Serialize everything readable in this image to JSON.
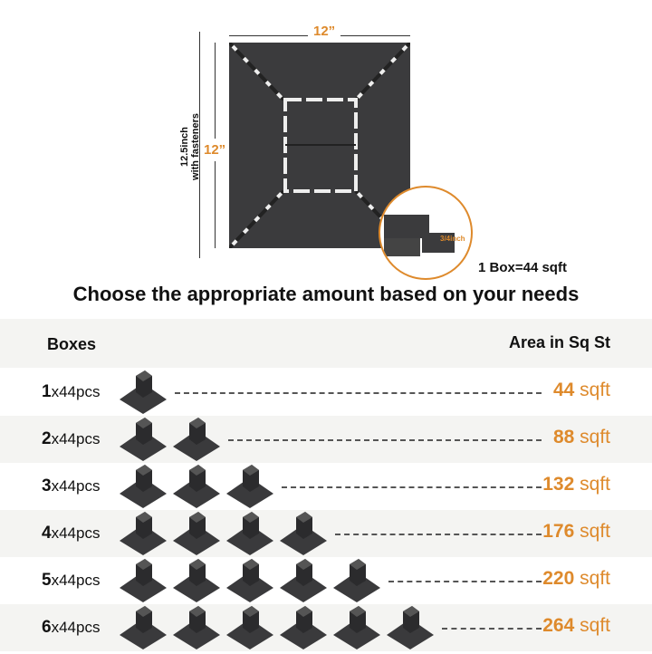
{
  "diagram": {
    "width_label": "12”",
    "height_label": "12”",
    "overall_label_line1": "12.5inch",
    "overall_label_line2": "with fasteners",
    "thickness_label": "3/4inch",
    "box_coverage": "1 Box=44 sqft"
  },
  "heading": "Choose the appropriate amount based on your needs",
  "table": {
    "col_boxes": "Boxes",
    "col_area": "Area in Sq St",
    "rows": [
      {
        "count": "1",
        "unit": "x44pcs",
        "area": "44",
        "area_unit": "sqft"
      },
      {
        "count": "2",
        "unit": "x44pcs",
        "area": "88",
        "area_unit": "sqft"
      },
      {
        "count": "3",
        "unit": "x44pcs",
        "area": "132",
        "area_unit": "sqft"
      },
      {
        "count": "4",
        "unit": "x44pcs",
        "area": "176",
        "area_unit": "sqft"
      },
      {
        "count": "5",
        "unit": "x44pcs",
        "area": "220",
        "area_unit": "sqft"
      },
      {
        "count": "6",
        "unit": "x44pcs",
        "area": "264",
        "area_unit": "sqft"
      }
    ]
  },
  "colors": {
    "accent": "#de8a2c",
    "tile": "#3b3b3d",
    "band": "#f4f4f2"
  }
}
